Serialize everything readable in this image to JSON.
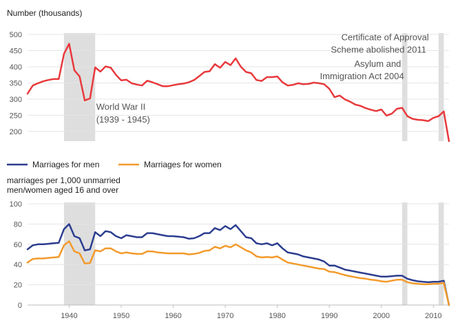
{
  "chart_data": [
    {
      "type": "line",
      "ylabel": "Number (thousands)",
      "ylim": [
        170,
        500
      ],
      "yticks": [
        200,
        250,
        300,
        350,
        400,
        450,
        500
      ],
      "xlim": [
        1932,
        2013
      ],
      "grid": true,
      "shaded_periods": [
        [
          1939,
          1945
        ],
        [
          2004,
          2005
        ],
        [
          2011,
          2012
        ]
      ],
      "annotations": [
        {
          "text": "World War II",
          "x": 1945.2,
          "y": 267
        },
        {
          "text": "(1939 - 1945)",
          "x": 1945.2,
          "y": 228
        },
        {
          "text": "Certificate of Approval",
          "x": 1992.3,
          "y": 482
        },
        {
          "text": "Scheme abolished 2011",
          "x": 1990.3,
          "y": 444
        },
        {
          "text": "Asylum and",
          "x": 1994.8,
          "y": 400
        },
        {
          "text": "Immigration Act 2004",
          "x": 1988.2,
          "y": 362
        }
      ],
      "series": [
        {
          "color": "#e8393c",
          "x": [
            1932,
            1933,
            1934,
            1935,
            1936,
            1937,
            1938,
            1939,
            1940,
            1941,
            1942,
            1943,
            1944,
            1945,
            1946,
            1947,
            1948,
            1949,
            1950,
            1951,
            1952,
            1953,
            1954,
            1955,
            1956,
            1957,
            1958,
            1959,
            1960,
            1961,
            1962,
            1963,
            1964,
            1965,
            1966,
            1967,
            1968,
            1969,
            1970,
            1971,
            1972,
            1973,
            1974,
            1975,
            1976,
            1977,
            1978,
            1979,
            1980,
            1981,
            1982,
            1983,
            1984,
            1985,
            1986,
            1987,
            1988,
            1989,
            1990,
            1991,
            1992,
            1993,
            1994,
            1995,
            1996,
            1997,
            1998,
            1999,
            2000,
            2001,
            2002,
            2003,
            2004,
            2005,
            2006,
            2007,
            2008,
            2009,
            2010,
            2011,
            2012,
            2013
          ],
          "values": [
            317,
            342,
            349,
            355,
            359,
            362,
            362,
            440,
            471,
            389,
            370,
            296,
            302,
            398,
            385,
            401,
            397,
            375,
            358,
            360,
            349,
            345,
            342,
            357,
            352,
            346,
            340,
            340,
            343,
            346,
            348,
            352,
            359,
            371,
            384,
            386,
            408,
            397,
            415,
            405,
            426,
            400,
            384,
            380,
            359,
            356,
            368,
            368,
            370,
            352,
            342,
            344,
            349,
            346,
            347,
            351,
            349,
            346,
            332,
            306,
            311,
            299,
            292,
            283,
            279,
            272,
            267,
            263,
            268,
            249,
            255,
            270,
            273,
            247,
            239,
            236,
            235,
            232,
            242,
            247,
            262,
            170
          ]
        }
      ]
    },
    {
      "type": "line",
      "ylabel": "marriages per 1,000 unmarried men/women aged 16 and over",
      "ylabel_lines": [
        "marriages per 1,000 unmarried",
        "men/women aged 16 and over"
      ],
      "ylim": [
        0,
        100
      ],
      "yticks": [
        0,
        20,
        40,
        60,
        80,
        100
      ],
      "xlim": [
        1932,
        2013
      ],
      "xticks": [
        1940,
        1950,
        1960,
        1970,
        1980,
        1990,
        2000,
        2010
      ],
      "grid": true,
      "legend_position": "top",
      "shaded_periods": [
        [
          1939,
          1945
        ],
        [
          2004,
          2005
        ],
        [
          2011,
          2012
        ]
      ],
      "series": [
        {
          "name": "Marriages for men",
          "color": "#2b3d8f",
          "x": [
            1932,
            1933,
            1934,
            1935,
            1936,
            1937,
            1938,
            1939,
            1940,
            1941,
            1942,
            1943,
            1944,
            1945,
            1946,
            1947,
            1948,
            1949,
            1950,
            1951,
            1952,
            1953,
            1954,
            1955,
            1956,
            1957,
            1958,
            1959,
            1960,
            1961,
            1962,
            1963,
            1964,
            1965,
            1966,
            1967,
            1968,
            1969,
            1970,
            1971,
            1972,
            1973,
            1974,
            1975,
            1976,
            1977,
            1978,
            1979,
            1980,
            1981,
            1982,
            1983,
            1984,
            1985,
            1986,
            1987,
            1988,
            1989,
            1990,
            1991,
            1992,
            1993,
            1994,
            1995,
            1996,
            1997,
            1998,
            1999,
            2000,
            2001,
            2002,
            2003,
            2004,
            2005,
            2006,
            2007,
            2008,
            2009,
            2010,
            2011,
            2012,
            2013
          ],
          "values": [
            55,
            59,
            60,
            60,
            60.5,
            61,
            61.5,
            75,
            80,
            68,
            66,
            54,
            55,
            72,
            68,
            73,
            72,
            68,
            66,
            69,
            68,
            67,
            67,
            71,
            71,
            70,
            69,
            68,
            68,
            67.5,
            67,
            65.5,
            66,
            68,
            71,
            71,
            76,
            74,
            78,
            75,
            79,
            73,
            67,
            66,
            61,
            60,
            61,
            59,
            61,
            56,
            52,
            51,
            50,
            48,
            47,
            46,
            45,
            43,
            39,
            39,
            37,
            35,
            34,
            33,
            32,
            31,
            30,
            29,
            28,
            28,
            28.5,
            29,
            29,
            26,
            24.5,
            23.5,
            23,
            22.5,
            23,
            23,
            24,
            0
          ]
        },
        {
          "name": "Marriages for women",
          "color": "#f39a2b",
          "x": [
            1932,
            1933,
            1934,
            1935,
            1936,
            1937,
            1938,
            1939,
            1940,
            1941,
            1942,
            1943,
            1944,
            1945,
            1946,
            1947,
            1948,
            1949,
            1950,
            1951,
            1952,
            1953,
            1954,
            1955,
            1956,
            1957,
            1958,
            1959,
            1960,
            1961,
            1962,
            1963,
            1964,
            1965,
            1966,
            1967,
            1968,
            1969,
            1970,
            1971,
            1972,
            1973,
            1974,
            1975,
            1976,
            1977,
            1978,
            1979,
            1980,
            1981,
            1982,
            1983,
            1984,
            1985,
            1986,
            1987,
            1988,
            1989,
            1990,
            1991,
            1992,
            1993,
            1994,
            1995,
            1996,
            1997,
            1998,
            1999,
            2000,
            2001,
            2002,
            2003,
            2004,
            2005,
            2006,
            2007,
            2008,
            2009,
            2010,
            2011,
            2012,
            2013
          ],
          "values": [
            42,
            45.5,
            46,
            46,
            46.5,
            47,
            47.5,
            59,
            63,
            53,
            51,
            41,
            41.5,
            54,
            53,
            56,
            56,
            53,
            51,
            52,
            51,
            50.5,
            50.5,
            53,
            53,
            52,
            51.5,
            51,
            51,
            51,
            51,
            50,
            50.5,
            51.5,
            53.5,
            54,
            57.5,
            56,
            58.5,
            57,
            60,
            57,
            54,
            52,
            48,
            47,
            47.5,
            47,
            48,
            45,
            42,
            41,
            40,
            39,
            38,
            37,
            36,
            35.5,
            33,
            32.5,
            31,
            29.5,
            28.5,
            27.5,
            26.5,
            26,
            25,
            24.5,
            23.5,
            23,
            24,
            25,
            25,
            22.5,
            21.5,
            21,
            20.5,
            20.5,
            21,
            21,
            22,
            0
          ]
        }
      ]
    }
  ]
}
